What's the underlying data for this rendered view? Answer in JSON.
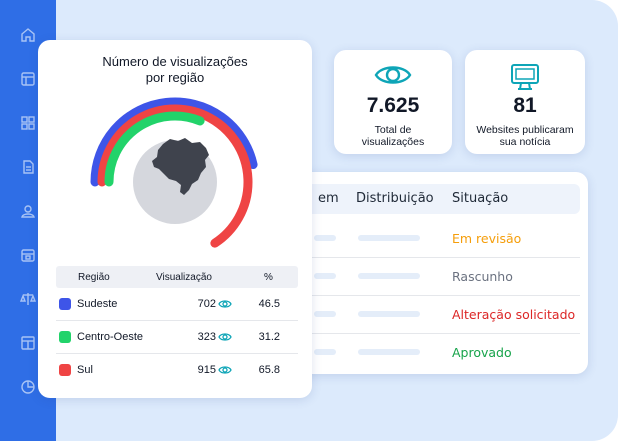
{
  "sidebar": {
    "icons": [
      "home-icon",
      "window-icon",
      "grid-icon",
      "document-icon",
      "users-icon",
      "calendar-icon",
      "scale-icon",
      "layout-icon",
      "pie-chart-icon"
    ]
  },
  "stats": [
    {
      "value": "7.625",
      "label_line1": "Total de",
      "label_line2": "visualizações",
      "icon": "eye-icon"
    },
    {
      "value": "81",
      "label_line1": "Websites publicaram",
      "label_line2": "sua notícia",
      "icon": "monitor-icon"
    }
  ],
  "table": {
    "headers": [
      "em",
      "Distribuição",
      "Situação"
    ],
    "rows": [
      {
        "status": "Em revisão",
        "color": "#f59e0b"
      },
      {
        "status": "Rascunho",
        "color": "#6b7280"
      },
      {
        "status": "Alteração solicitado",
        "color": "#dc2626"
      },
      {
        "status": "Aprovado",
        "color": "#16a34a"
      }
    ]
  },
  "chart_card": {
    "title_line1": "Número de visualizações",
    "title_line2": "por região",
    "table_headers": {
      "region": "Região",
      "views": "Visualização",
      "pct": "%"
    },
    "colors": {
      "Sudeste": "#3e55e8",
      "Centro-Oeste": "#22d36a",
      "Sul": "#ef4444",
      "track": "#d5d7dd"
    }
  },
  "chart_data": {
    "type": "radial-bar",
    "categories": [
      "Sudeste",
      "Centro-Oeste",
      "Sul"
    ],
    "values": [
      702,
      323,
      915
    ],
    "percentages": [
      46.5,
      31.2,
      65.8
    ],
    "title": "Número de visualizações por região"
  }
}
